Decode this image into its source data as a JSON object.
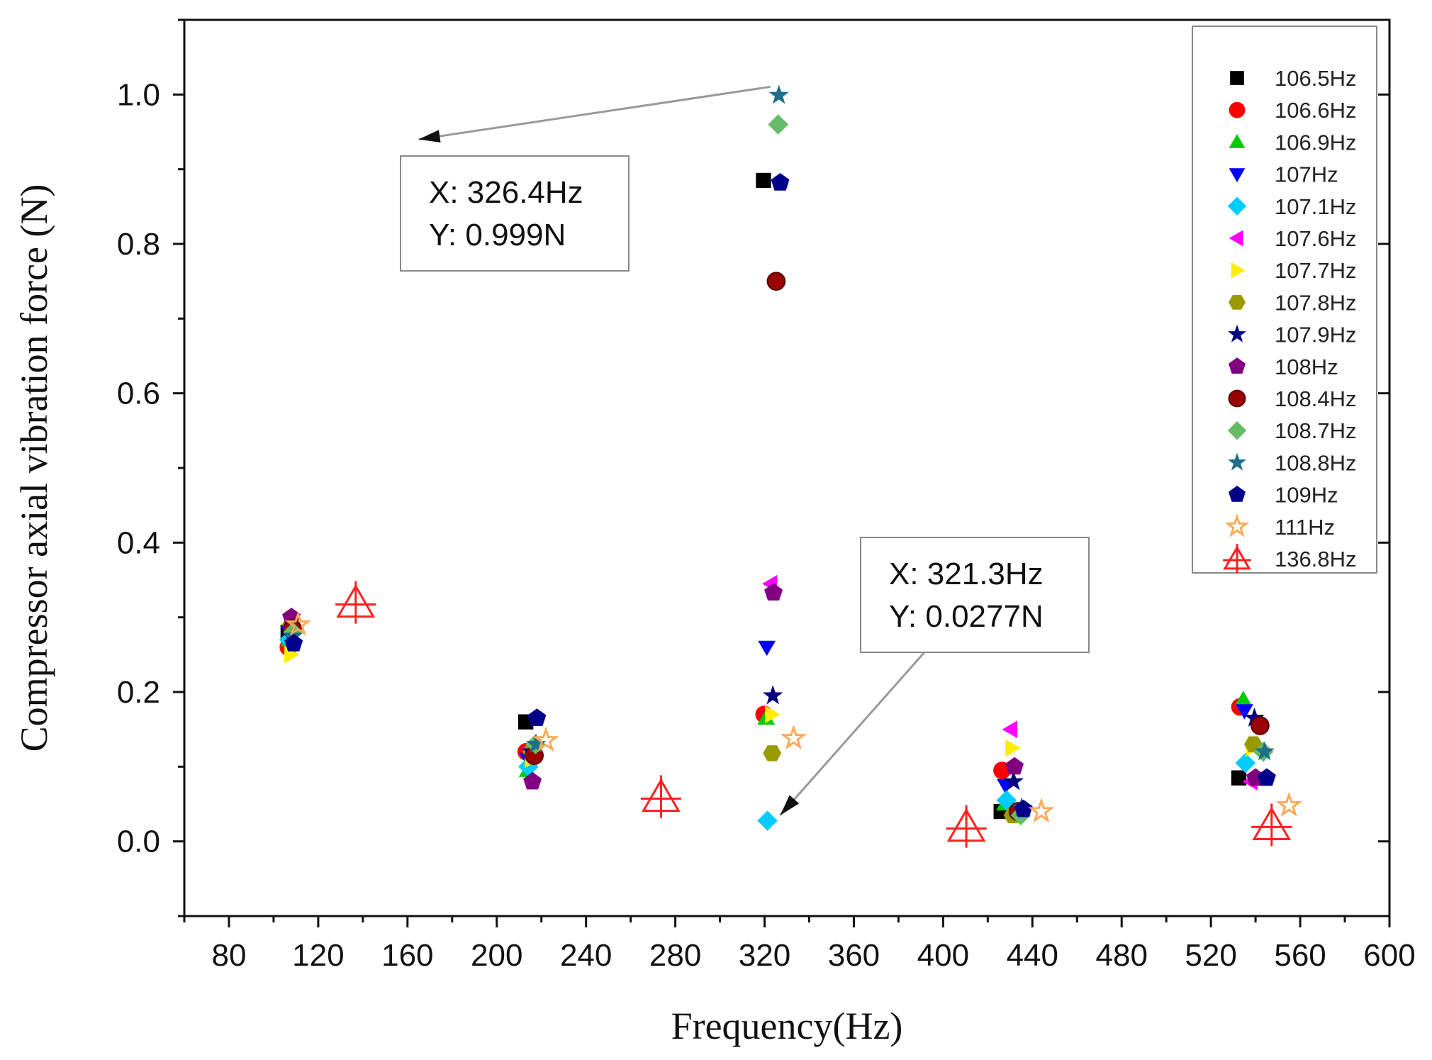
{
  "chart_data": {
    "type": "scatter",
    "title": "",
    "xlabel": "Frequency(Hz)",
    "ylabel": "Compressor axial vibration force (N)",
    "xlim": [
      60,
      600
    ],
    "ylim": [
      -0.1,
      1.1
    ],
    "xticks": [
      80,
      120,
      160,
      200,
      240,
      280,
      320,
      360,
      400,
      440,
      480,
      520,
      560,
      600
    ],
    "yticks": [
      0.0,
      0.2,
      0.4,
      0.6,
      0.8,
      1.0
    ],
    "ytick_labels": [
      "0.0",
      "0.2",
      "0.4",
      "0.6",
      "0.8",
      "1.0"
    ],
    "grid": false,
    "legend_position": "top-right",
    "series": [
      {
        "name": "106.5Hz",
        "marker": "square",
        "color": "#000000",
        "points": [
          [
            106.5,
            0.28
          ],
          [
            213,
            0.16
          ],
          [
            319.5,
            0.885
          ],
          [
            426,
            0.04
          ],
          [
            532.5,
            0.085
          ]
        ]
      },
      {
        "name": "106.6Hz",
        "marker": "circle",
        "color": "#ff0000",
        "points": [
          [
            106.6,
            0.26
          ],
          [
            213.2,
            0.12
          ],
          [
            319.8,
            0.17
          ],
          [
            426.4,
            0.095
          ],
          [
            533,
            0.18
          ]
        ]
      },
      {
        "name": "106.9Hz",
        "marker": "triangle-up",
        "color": "#00cc00",
        "points": [
          [
            106.9,
            0.27
          ],
          [
            213.8,
            0.095
          ],
          [
            320.7,
            0.165
          ],
          [
            427.6,
            0.05
          ],
          [
            534.5,
            0.19
          ]
        ]
      },
      {
        "name": "107Hz",
        "marker": "triangle-down",
        "color": "#0000ff",
        "points": [
          [
            107,
            0.28
          ],
          [
            214,
            0.11
          ],
          [
            321,
            0.26
          ],
          [
            428,
            0.075
          ],
          [
            535,
            0.175
          ]
        ]
      },
      {
        "name": "107.1Hz",
        "marker": "diamond",
        "color": "#00ccff",
        "points": [
          [
            107.1,
            0.27
          ],
          [
            214.2,
            0.1
          ],
          [
            321.3,
            0.0277
          ],
          [
            428.4,
            0.055
          ],
          [
            535.5,
            0.105
          ]
        ]
      },
      {
        "name": "107.6Hz",
        "marker": "triangle-left",
        "color": "#ff00ff",
        "points": [
          [
            107.6,
            0.29
          ],
          [
            215.2,
            0.125
          ],
          [
            322.8,
            0.345
          ],
          [
            430.4,
            0.15
          ],
          [
            538,
            0.08
          ]
        ]
      },
      {
        "name": "107.7Hz",
        "marker": "triangle-right",
        "color": "#ffee00",
        "points": [
          [
            107.7,
            0.25
          ],
          [
            215.4,
            0.11
          ],
          [
            323.1,
            0.17
          ],
          [
            430.8,
            0.125
          ],
          [
            538.5,
            0.125
          ]
        ]
      },
      {
        "name": "107.8Hz",
        "marker": "hexagon",
        "color": "#999900",
        "points": [
          [
            107.8,
            0.29
          ],
          [
            215.6,
            0.12
          ],
          [
            323.4,
            0.118
          ],
          [
            431.2,
            0.035
          ],
          [
            539,
            0.13
          ]
        ]
      },
      {
        "name": "107.9Hz",
        "marker": "star",
        "color": "#000080",
        "points": [
          [
            107.9,
            0.275
          ],
          [
            215.8,
            0.12
          ],
          [
            323.7,
            0.195
          ],
          [
            431.6,
            0.08
          ],
          [
            539.5,
            0.165
          ]
        ]
      },
      {
        "name": "108Hz",
        "marker": "pentagon",
        "color": "#800080",
        "points": [
          [
            108,
            0.3
          ],
          [
            216,
            0.08
          ],
          [
            324,
            0.333
          ],
          [
            432,
            0.1
          ],
          [
            540,
            0.085
          ]
        ]
      },
      {
        "name": "108.4Hz",
        "marker": "ball",
        "color": "#990000",
        "points": [
          [
            108.4,
            0.285
          ],
          [
            216.8,
            0.115
          ],
          [
            325.2,
            0.75
          ],
          [
            433.6,
            0.04
          ],
          [
            542,
            0.155
          ]
        ]
      },
      {
        "name": "108.7Hz",
        "marker": "diamond",
        "color": "#66bb66",
        "points": [
          [
            108.7,
            0.28
          ],
          [
            217.4,
            0.13
          ],
          [
            326.1,
            0.96
          ],
          [
            434.8,
            0.035
          ],
          [
            543.5,
            0.12
          ]
        ]
      },
      {
        "name": "108.8Hz",
        "marker": "star",
        "color": "#1f6f8b",
        "points": [
          [
            108.8,
            0.275
          ],
          [
            217.6,
            0.13
          ],
          [
            326.4,
            0.999
          ],
          [
            435.2,
            0.045
          ],
          [
            544,
            0.12
          ]
        ]
      },
      {
        "name": "109Hz",
        "marker": "pentagon",
        "color": "#00008b",
        "points": [
          [
            109,
            0.265
          ],
          [
            218,
            0.165
          ],
          [
            327,
            0.882
          ],
          [
            436,
            0.043
          ],
          [
            545,
            0.085
          ]
        ]
      },
      {
        "name": "111Hz",
        "marker": "star-open",
        "color": "#ffaa55",
        "points": [
          [
            111,
            0.29
          ],
          [
            222,
            0.135
          ],
          [
            333,
            0.138
          ],
          [
            444,
            0.04
          ],
          [
            555,
            0.048
          ]
        ]
      },
      {
        "name": "136.8Hz",
        "marker": "triangle-cross-open",
        "color": "#ff2020",
        "points": [
          [
            136.8,
            0.32
          ],
          [
            273.6,
            0.06
          ],
          [
            410.4,
            0.02
          ],
          [
            547.2,
            0.022
          ]
        ]
      }
    ],
    "annotations": [
      {
        "x_label": "X: 326.4Hz",
        "y_label": "Y: 0.999N",
        "target": [
          326.4,
          0.999
        ],
        "arrow_tip": [
          165,
          0.94
        ]
      },
      {
        "x_label": "X: 321.3Hz",
        "y_label": "Y: 0.0277N",
        "target": [
          321.3,
          0.0277
        ],
        "arrow_tip": [
          327,
          0.035
        ]
      }
    ]
  }
}
